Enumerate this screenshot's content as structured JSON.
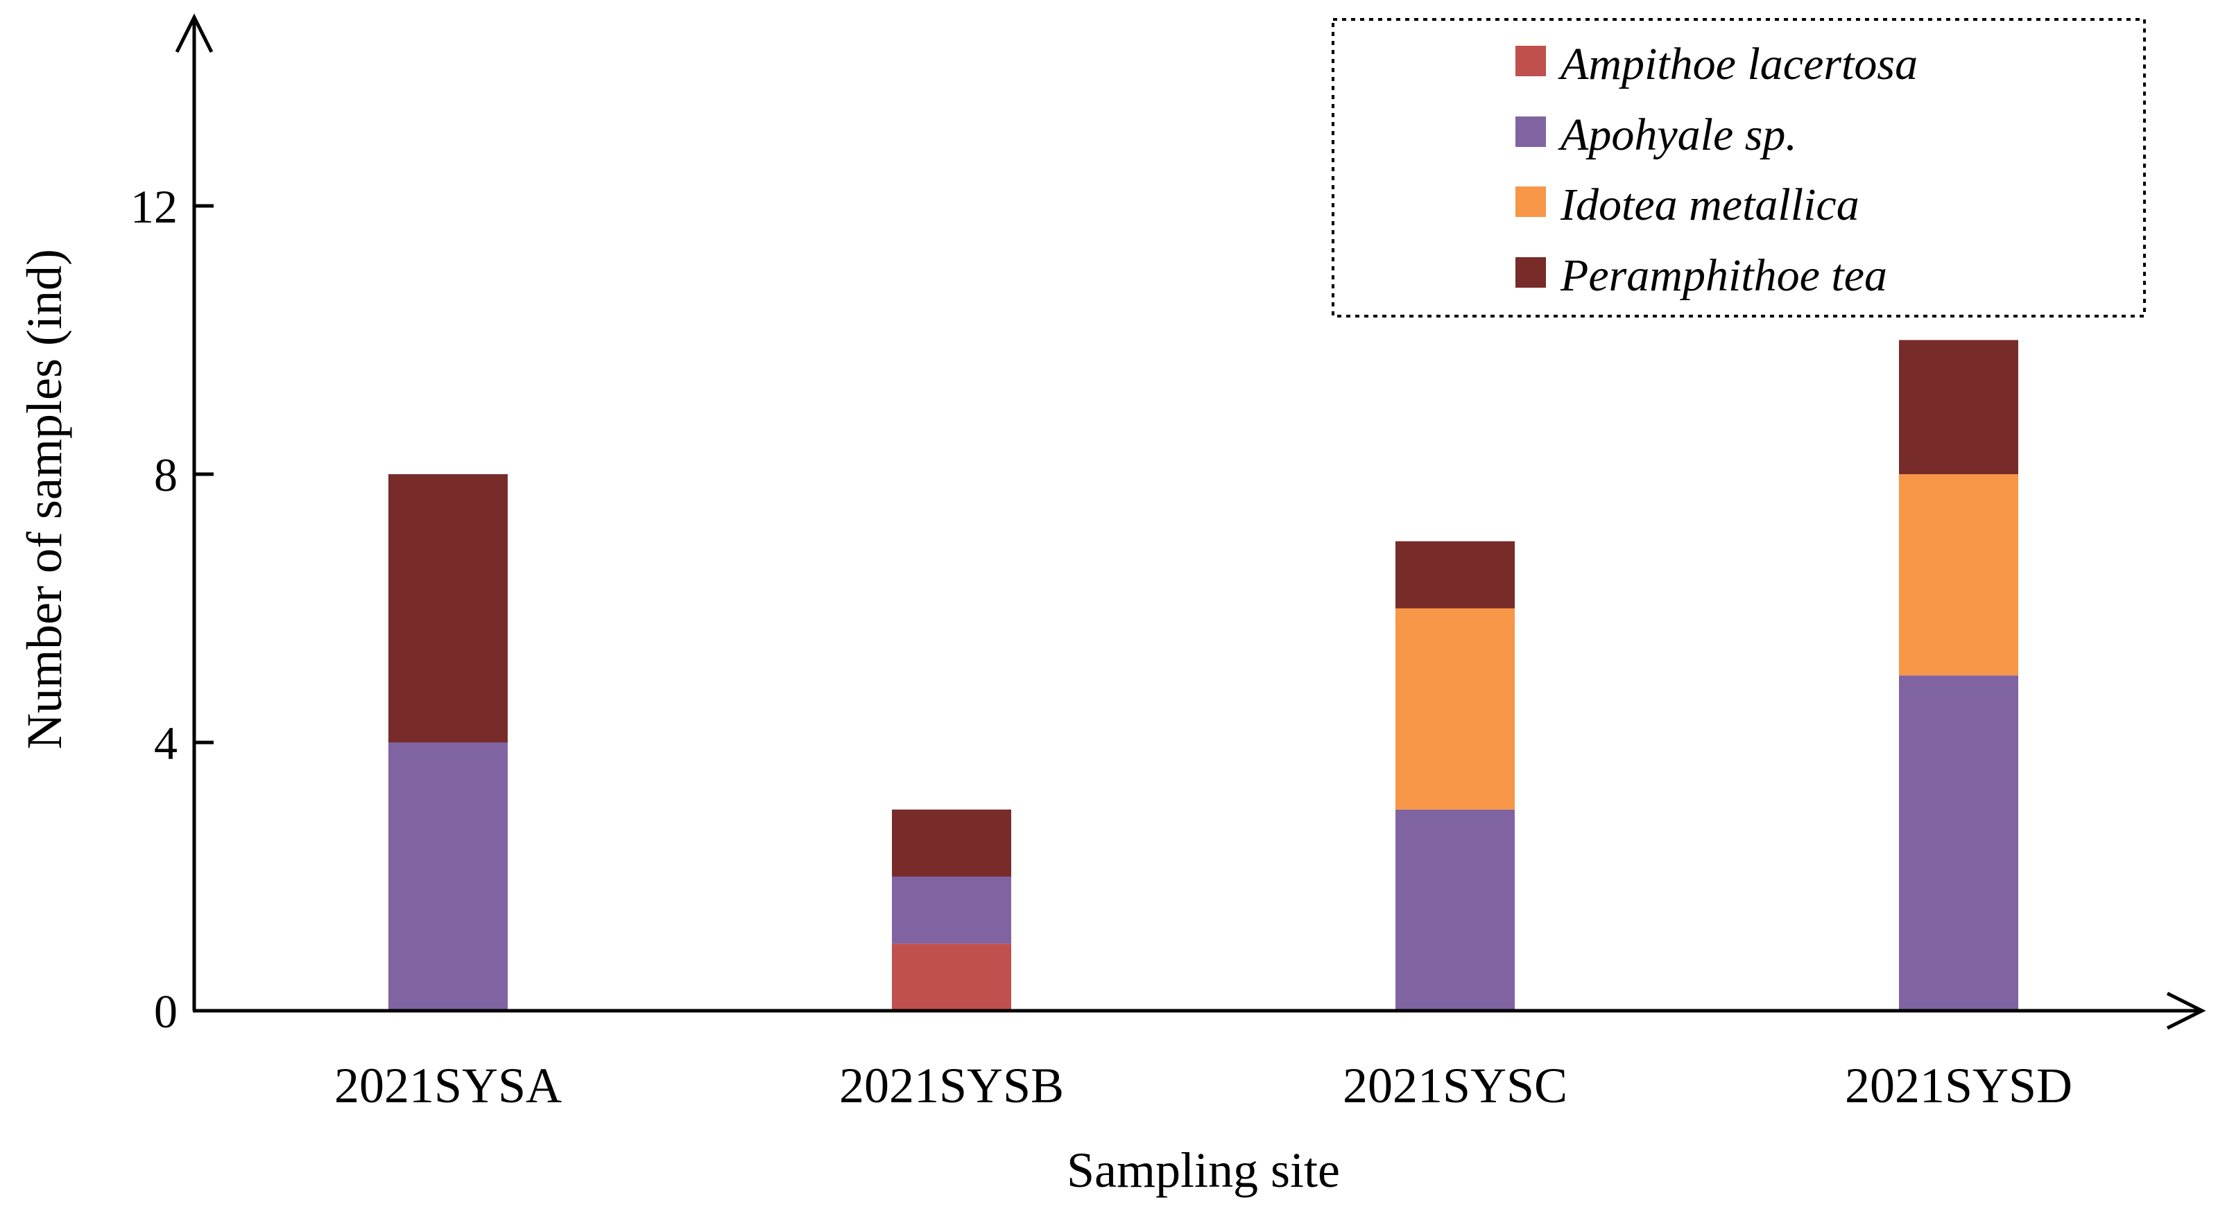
{
  "chart_data": {
    "type": "bar",
    "stacked": true,
    "title": "",
    "xlabel": "Sampling site",
    "ylabel": "Number of samples (ind)",
    "categories": [
      "2021SYSA",
      "2021SYSB",
      "2021SYSC",
      "2021SYSD"
    ],
    "yticks": [
      "0",
      "4",
      "8",
      "12"
    ],
    "ylim": [
      0,
      15
    ],
    "grid": false,
    "legend_position": "top-right",
    "series": [
      {
        "name": "Ampithoe lacertosa",
        "color": "#C0504D",
        "values": [
          0,
          1,
          0,
          0
        ]
      },
      {
        "name": "Apohyale sp.",
        "color": "#8064A2",
        "values": [
          4,
          1,
          3,
          5
        ]
      },
      {
        "name": "Idotea metallica",
        "color": "#F79646",
        "values": [
          0,
          0,
          3,
          3
        ]
      },
      {
        "name": "Peramphithoe tea",
        "color": "#772C2A",
        "values": [
          4,
          1,
          1,
          2
        ]
      }
    ]
  }
}
